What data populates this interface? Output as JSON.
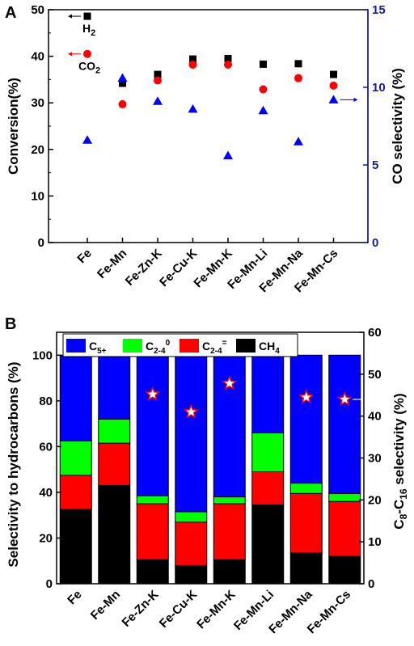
{
  "colors": {
    "blue": "#0000ff",
    "green": "#00ff00",
    "red": "#ff0000",
    "black": "#000000",
    "right_axis": "#1a1a9c"
  },
  "chart_data": [
    {
      "panel": "A",
      "type": "scatter",
      "categories": [
        "Fe",
        "Fe-Mn",
        "Fe-Zn-K",
        "Fe-Cu-K",
        "Fe-Mn-K",
        "Fe-Mn-Li",
        "Fe-Mn-Na",
        "Fe-Mn-Cs"
      ],
      "ylabel": "Conversion(%)",
      "ylim": [
        0,
        50
      ],
      "yticks": [
        "0",
        "10",
        "20",
        "30",
        "40",
        "50"
      ],
      "y2label": "CO selectivity (%)",
      "y2lim": [
        0,
        15
      ],
      "y2ticks": [
        "0",
        "5",
        "10",
        "15"
      ],
      "series": [
        {
          "name": "H₂",
          "label_main": "H",
          "label_sub": "2",
          "marker": "square",
          "axis": "left",
          "values": [
            48.6,
            34.2,
            36.1,
            39.4,
            39.5,
            38.3,
            38.4,
            36.1
          ]
        },
        {
          "name": "CO₂",
          "label_main": "CO",
          "label_sub": "2",
          "marker": "circle",
          "axis": "left",
          "values": [
            40.5,
            29.7,
            34.8,
            38.2,
            38.2,
            32.9,
            35.3,
            33.7
          ]
        },
        {
          "marker": "triangle",
          "axis": "right",
          "values": [
            6.6,
            10.6,
            9.1,
            8.6,
            5.6,
            8.5,
            6.5,
            9.2
          ]
        }
      ]
    },
    {
      "panel": "B",
      "type": "bar",
      "stacked": true,
      "categories": [
        "Fe",
        "Fe-Mn",
        "Fe-Zn-K",
        "Fe-Cu-K",
        "Fe-Mn-K",
        "Fe-Mn-Li",
        "Fe-Mn-Na",
        "Fe-Mn-Cs"
      ],
      "ylabel": "Selectivity to hydrocarbons (%)",
      "ylim": [
        0,
        110
      ],
      "yticks": [
        "0",
        "20",
        "40",
        "60",
        "80",
        "100"
      ],
      "y2label_main": "C",
      "y2label_sub1": "8",
      "y2label_mid": "-C",
      "y2label_sub2": "16",
      "y2label_end": " selectivity (%)",
      "y2lim": [
        0,
        60
      ],
      "y2ticks": [
        "0",
        "10",
        "20",
        "30",
        "40",
        "50",
        "60"
      ],
      "legend": [
        {
          "main": "C",
          "sub": "5+",
          "sup": ""
        },
        {
          "main": "C",
          "sub": "2-4",
          "sup": "0"
        },
        {
          "main": "C",
          "sub": "2-4",
          "sup": "="
        },
        {
          "main": "CH",
          "sub": "4",
          "sup": ""
        }
      ],
      "series": [
        {
          "name": "CH₄",
          "values": [
            32.5,
            43,
            10.5,
            8,
            10.5,
            34.5,
            13.5,
            12
          ]
        },
        {
          "name": "C₂₋₄⁼",
          "values": [
            15,
            18.5,
            24.5,
            19,
            24.5,
            14.5,
            26,
            24
          ]
        },
        {
          "name": "C₂₋₄⁰",
          "values": [
            15,
            10.5,
            3.5,
            4.5,
            3,
            17,
            4.5,
            3.5
          ]
        },
        {
          "name": "C₅₊",
          "values": [
            37.5,
            28,
            61.5,
            68.5,
            62,
            34,
            56,
            60.5
          ]
        }
      ],
      "c8_c16": [
        null,
        null,
        45.2,
        41.0,
        47.8,
        null,
        44.5,
        44.0
      ]
    }
  ]
}
